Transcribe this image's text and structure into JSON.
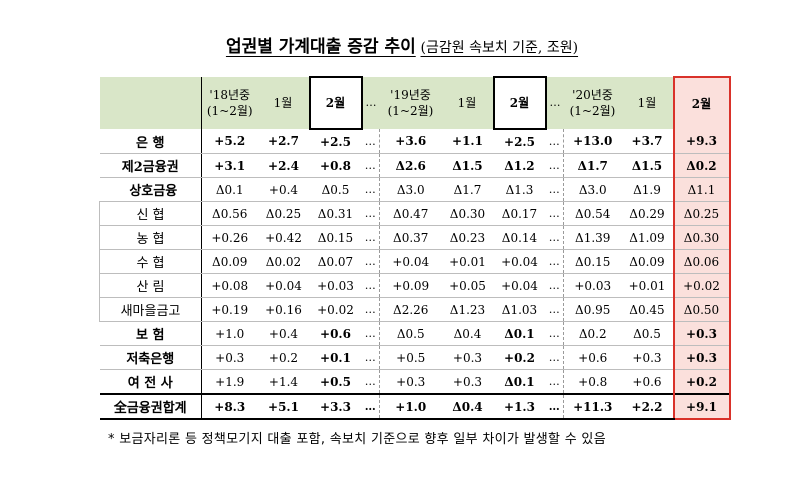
{
  "title": {
    "main": "업권별 가계대출 증감 추이",
    "sub": "(금감원 속보치 기준, 조원)"
  },
  "headers": {
    "y18": [
      "'18년중",
      "(1~2월)"
    ],
    "y19": [
      "'19년중",
      "(1~2월)"
    ],
    "y20": [
      "'20년중",
      "(1~2월)"
    ],
    "jan": "1월",
    "feb": "2월",
    "ellipsis": "…"
  },
  "rows": [
    {
      "label": "은 행",
      "level": 0,
      "values": [
        "+5.2",
        "+2.7",
        "+2.5",
        "+3.6",
        "+1.1",
        "+2.5",
        "+13.0",
        "+3.7",
        "+9.3"
      ]
    },
    {
      "label": "제2금융권",
      "level": 0,
      "values": [
        "+3.1",
        "+2.4",
        "+0.8",
        "Δ2.6",
        "Δ1.5",
        "Δ1.2",
        "Δ1.7",
        "Δ1.5",
        "Δ0.2"
      ]
    },
    {
      "label": "상호금융",
      "level": 1,
      "values": [
        "Δ0.1",
        "+0.4",
        "Δ0.5",
        "Δ3.0",
        "Δ1.7",
        "Δ1.3",
        "Δ3.0",
        "Δ1.9",
        "Δ1.1"
      ]
    },
    {
      "label": "신 협",
      "level": 2,
      "values": [
        "Δ0.56",
        "Δ0.25",
        "Δ0.31",
        "Δ0.47",
        "Δ0.30",
        "Δ0.17",
        "Δ0.54",
        "Δ0.29",
        "Δ0.25"
      ]
    },
    {
      "label": "농 협",
      "level": 2,
      "values": [
        "+0.26",
        "+0.42",
        "Δ0.15",
        "Δ0.37",
        "Δ0.23",
        "Δ0.14",
        "Δ1.39",
        "Δ1.09",
        "Δ0.30"
      ]
    },
    {
      "label": "수 협",
      "level": 2,
      "values": [
        "Δ0.09",
        "Δ0.02",
        "Δ0.07",
        "+0.04",
        "+0.01",
        "+0.04",
        "Δ0.15",
        "Δ0.09",
        "Δ0.06"
      ]
    },
    {
      "label": "산 림",
      "level": 2,
      "values": [
        "+0.08",
        "+0.04",
        "+0.03",
        "+0.09",
        "+0.05",
        "+0.04",
        "+0.03",
        "+0.01",
        "+0.02"
      ]
    },
    {
      "label": "새마을금고",
      "level": 2,
      "values": [
        "+0.19",
        "+0.16",
        "+0.02",
        "Δ2.26",
        "Δ1.23",
        "Δ1.03",
        "Δ0.95",
        "Δ0.45",
        "Δ0.50"
      ]
    },
    {
      "label": "보 험",
      "level": 0,
      "values": [
        "+1.0",
        "+0.4",
        "+0.6",
        "Δ0.5",
        "Δ0.4",
        "Δ0.1",
        "Δ0.2",
        "Δ0.5",
        "+0.3"
      ]
    },
    {
      "label": "저축은행",
      "level": 0,
      "values": [
        "+0.3",
        "+0.2",
        "+0.1",
        "+0.5",
        "+0.3",
        "+0.2",
        "+0.6",
        "+0.3",
        "+0.3"
      ]
    },
    {
      "label": "여 전 사",
      "level": 0,
      "values": [
        "+1.9",
        "+1.4",
        "+0.5",
        "+0.3",
        "+0.3",
        "Δ0.1",
        "+0.8",
        "+0.6",
        "+0.2"
      ]
    }
  ],
  "total": {
    "label": "全금융권합계",
    "values": [
      "+8.3",
      "+5.1",
      "+3.3",
      "+1.0",
      "Δ0.4",
      "+1.3",
      "+11.3",
      "+2.2",
      "+9.1"
    ]
  },
  "footnote": "* 보금자리론 등 정책모기지 대출 포함, 속보치 기준으로 향후 일부 차이가 발생할 수 있음",
  "colors": {
    "header_bg": "#d9e6c8",
    "highlight_bg": "#fbe0dc",
    "highlight_border": "#d9322a"
  }
}
